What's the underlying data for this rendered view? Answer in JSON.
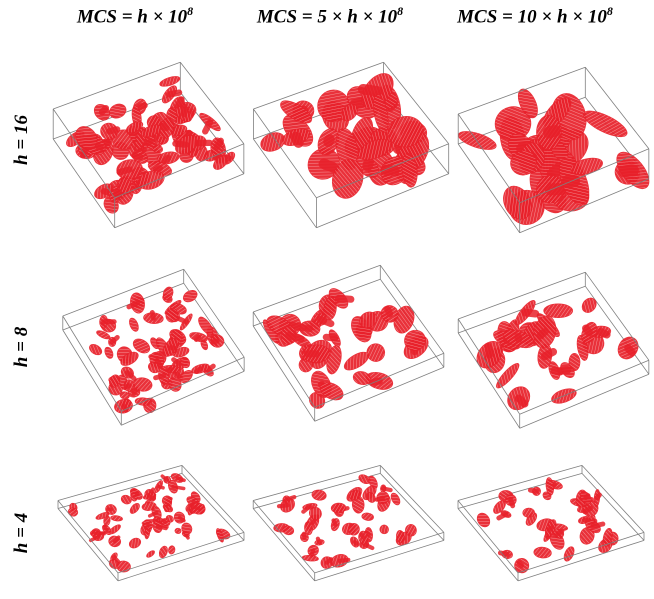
{
  "columns": [
    {
      "label": "MCS = h × 10",
      "sup": "8"
    },
    {
      "label": "MCS = 5 ×  h × 10",
      "sup": "8"
    },
    {
      "label": "MCS = 10 ×  h × 10",
      "sup": "8"
    }
  ],
  "rows": [
    {
      "label": "h = 16"
    },
    {
      "label": "h = 8"
    },
    {
      "label": "h = 4"
    }
  ],
  "colors": {
    "domain": "#e8202a",
    "box_edge": "#7f7f7f",
    "background": "#ffffff"
  }
}
